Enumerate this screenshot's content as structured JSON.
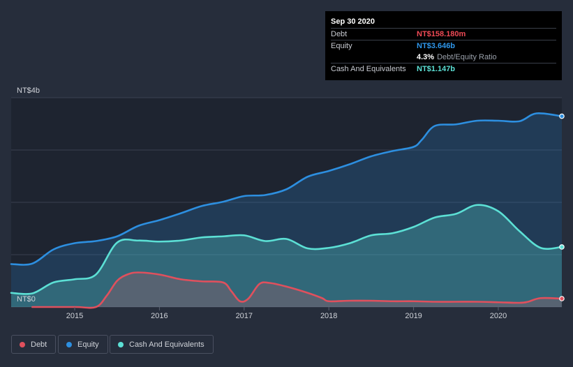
{
  "chart_data": {
    "type": "area",
    "title": "",
    "xlabel": "",
    "ylabel": "",
    "y_axis_labels": [
      "NT$4b",
      "NT$0"
    ],
    "ylim": [
      0,
      4
    ],
    "xlim": [
      2014.25,
      2020.75
    ],
    "x_ticks": [
      2015,
      2016,
      2017,
      2018,
      2019,
      2020
    ],
    "x_tick_labels": [
      "2015",
      "2016",
      "2017",
      "2018",
      "2019",
      "2020"
    ],
    "series": [
      {
        "name": "Debt",
        "color": "#e0505d",
        "x": [
          2014.5,
          2015.0,
          2015.25,
          2015.38,
          2015.5,
          2015.62,
          2015.75,
          2016.0,
          2016.25,
          2016.5,
          2016.75,
          2016.85,
          2016.95,
          2017.05,
          2017.18,
          2017.3,
          2017.5,
          2017.75,
          2017.92,
          2018.0,
          2018.25,
          2018.5,
          2018.75,
          2019.0,
          2019.25,
          2019.5,
          2019.75,
          2020.0,
          2020.25,
          2020.35,
          2020.5,
          2020.75
        ],
        "y": [
          0.0,
          0.0,
          0.0,
          0.22,
          0.5,
          0.62,
          0.66,
          0.62,
          0.53,
          0.49,
          0.47,
          0.3,
          0.11,
          0.16,
          0.44,
          0.46,
          0.39,
          0.27,
          0.17,
          0.11,
          0.12,
          0.12,
          0.11,
          0.11,
          0.1,
          0.1,
          0.1,
          0.09,
          0.08,
          0.1,
          0.17,
          0.16
        ]
      },
      {
        "name": "Equity",
        "color": "#2d8fe0",
        "x": [
          2014.25,
          2014.5,
          2014.75,
          2015.0,
          2015.25,
          2015.5,
          2015.75,
          2016.0,
          2016.25,
          2016.5,
          2016.75,
          2017.0,
          2017.25,
          2017.5,
          2017.75,
          2018.0,
          2018.25,
          2018.5,
          2018.75,
          2019.0,
          2019.1,
          2019.25,
          2019.5,
          2019.75,
          2020.0,
          2020.25,
          2020.45,
          2020.75
        ],
        "y": [
          0.82,
          0.83,
          1.1,
          1.22,
          1.26,
          1.35,
          1.55,
          1.66,
          1.79,
          1.93,
          2.01,
          2.12,
          2.14,
          2.25,
          2.49,
          2.6,
          2.73,
          2.88,
          2.98,
          3.06,
          3.2,
          3.46,
          3.49,
          3.56,
          3.56,
          3.55,
          3.7,
          3.646
        ]
      },
      {
        "name": "Cash And Equivalents",
        "color": "#5ce0d5",
        "x": [
          2014.25,
          2014.5,
          2014.75,
          2015.0,
          2015.25,
          2015.5,
          2015.75,
          2016.0,
          2016.25,
          2016.5,
          2016.75,
          2017.0,
          2017.25,
          2017.5,
          2017.75,
          2018.0,
          2018.25,
          2018.5,
          2018.75,
          2019.0,
          2019.25,
          2019.5,
          2019.75,
          2020.0,
          2020.25,
          2020.5,
          2020.75
        ],
        "y": [
          0.27,
          0.26,
          0.47,
          0.53,
          0.62,
          1.23,
          1.27,
          1.25,
          1.27,
          1.33,
          1.35,
          1.37,
          1.26,
          1.3,
          1.12,
          1.13,
          1.22,
          1.37,
          1.41,
          1.53,
          1.71,
          1.78,
          1.95,
          1.83,
          1.45,
          1.13,
          1.147
        ]
      }
    ],
    "tooltip": {
      "date": "Sep 30 2020",
      "rows": [
        {
          "label": "Debt",
          "value": "NT$158.180m",
          "color": "#e0505d"
        },
        {
          "label": "Equity",
          "value": "NT$3.646b",
          "color": "#2d8fe0"
        },
        {
          "ratio_value": "4.3%",
          "ratio_label": "Debt/Equity Ratio"
        },
        {
          "label": "Cash And Equivalents",
          "value": "NT$1.147b",
          "color": "#5ce0d5"
        }
      ]
    },
    "legend": [
      {
        "label": "Debt",
        "color": "#e0505d"
      },
      {
        "label": "Equity",
        "color": "#2d8fe0"
      },
      {
        "label": "Cash And Equivalents",
        "color": "#5ce0d5"
      }
    ]
  }
}
